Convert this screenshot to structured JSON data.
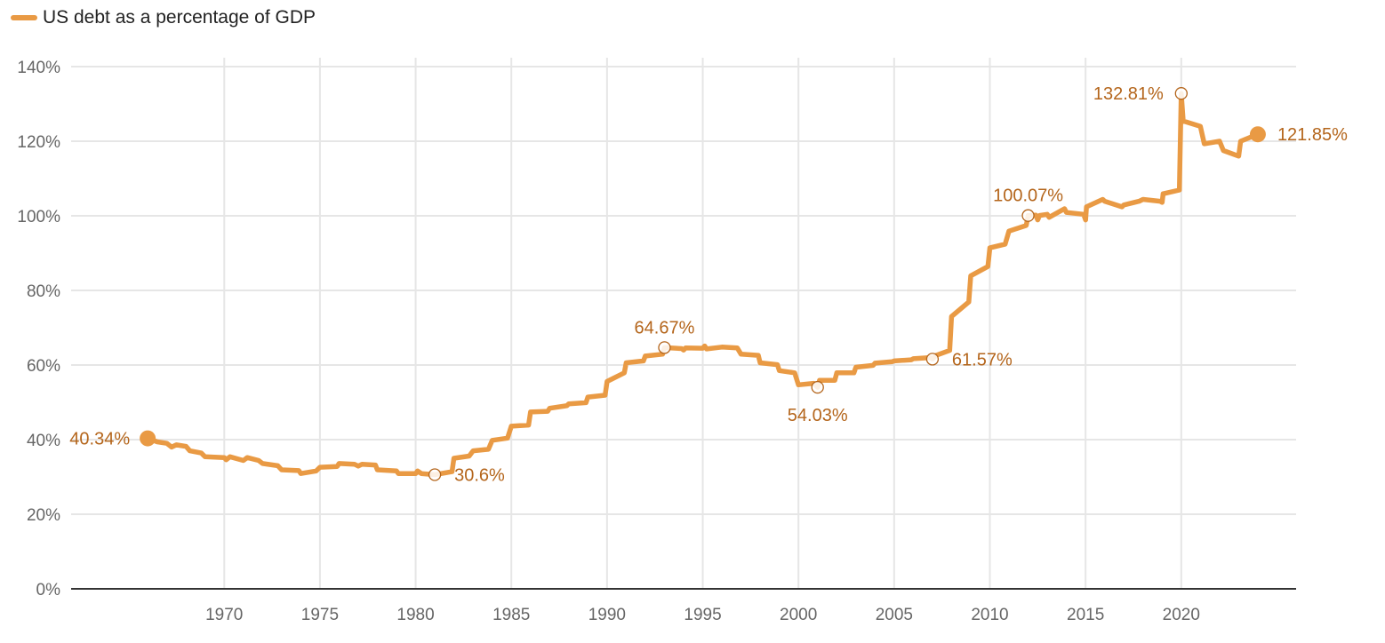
{
  "chart_data": {
    "type": "line",
    "series": [
      {
        "name": "US debt as a percentage of GDP",
        "color": "#E99A44",
        "points": [
          [
            1966.0,
            40.34
          ],
          [
            1966.5,
            39.4
          ],
          [
            1967.0,
            39.0
          ],
          [
            1967.25,
            38.0
          ],
          [
            1967.5,
            38.6
          ],
          [
            1968.0,
            38.2
          ],
          [
            1968.2,
            37.0
          ],
          [
            1968.8,
            36.4
          ],
          [
            1969.0,
            35.4
          ],
          [
            1970.0,
            35.2
          ],
          [
            1970.1,
            34.6
          ],
          [
            1970.3,
            35.4
          ],
          [
            1971.0,
            34.4
          ],
          [
            1971.2,
            35.2
          ],
          [
            1971.8,
            34.4
          ],
          [
            1972.0,
            33.6
          ],
          [
            1972.8,
            33.0
          ],
          [
            1973.0,
            31.9
          ],
          [
            1973.9,
            31.7
          ],
          [
            1974.0,
            30.9
          ],
          [
            1974.8,
            31.6
          ],
          [
            1975.0,
            32.6
          ],
          [
            1975.9,
            32.8
          ],
          [
            1976.0,
            33.6
          ],
          [
            1976.8,
            33.4
          ],
          [
            1977.0,
            32.9
          ],
          [
            1977.2,
            33.4
          ],
          [
            1977.9,
            33.2
          ],
          [
            1978.0,
            31.9
          ],
          [
            1979.0,
            31.6
          ],
          [
            1979.1,
            30.9
          ],
          [
            1980.0,
            30.9
          ],
          [
            1980.1,
            31.6
          ],
          [
            1980.3,
            30.9
          ],
          [
            1981.0,
            30.6
          ],
          [
            1981.9,
            31.4
          ],
          [
            1982.0,
            35.0
          ],
          [
            1982.8,
            35.6
          ],
          [
            1983.0,
            37.0
          ],
          [
            1983.8,
            37.4
          ],
          [
            1984.0,
            39.8
          ],
          [
            1984.8,
            40.4
          ],
          [
            1985.0,
            43.6
          ],
          [
            1985.9,
            43.9
          ],
          [
            1986.0,
            47.4
          ],
          [
            1986.9,
            47.6
          ],
          [
            1987.0,
            48.4
          ],
          [
            1987.9,
            49.1
          ],
          [
            1988.0,
            49.6
          ],
          [
            1988.9,
            49.9
          ],
          [
            1989.0,
            51.4
          ],
          [
            1989.9,
            51.9
          ],
          [
            1990.0,
            55.6
          ],
          [
            1990.9,
            57.9
          ],
          [
            1991.0,
            60.6
          ],
          [
            1991.9,
            61.1
          ],
          [
            1992.0,
            62.4
          ],
          [
            1992.9,
            62.9
          ],
          [
            1993.0,
            64.67
          ],
          [
            1993.9,
            64.4
          ],
          [
            1994.0,
            64.0
          ],
          [
            1994.1,
            64.6
          ],
          [
            1995.0,
            64.5
          ],
          [
            1995.1,
            65.1
          ],
          [
            1995.2,
            64.3
          ],
          [
            1996.0,
            64.8
          ],
          [
            1996.8,
            64.6
          ],
          [
            1997.0,
            62.9
          ],
          [
            1997.9,
            62.6
          ],
          [
            1998.0,
            60.6
          ],
          [
            1998.9,
            60.1
          ],
          [
            1999.0,
            58.5
          ],
          [
            1999.8,
            57.9
          ],
          [
            2000.0,
            54.7
          ],
          [
            2000.8,
            55.1
          ],
          [
            2001.0,
            54.03
          ],
          [
            2001.1,
            55.9
          ],
          [
            2001.9,
            55.9
          ],
          [
            2002.0,
            57.9
          ],
          [
            2002.9,
            57.9
          ],
          [
            2003.0,
            59.4
          ],
          [
            2003.9,
            59.9
          ],
          [
            2004.0,
            60.5
          ],
          [
            2004.9,
            60.9
          ],
          [
            2005.0,
            61.1
          ],
          [
            2005.9,
            61.4
          ],
          [
            2006.0,
            61.7
          ],
          [
            2006.9,
            62.0
          ],
          [
            2007.0,
            61.57
          ],
          [
            2007.2,
            62.6
          ],
          [
            2007.9,
            63.9
          ],
          [
            2008.0,
            73.0
          ],
          [
            2008.9,
            76.9
          ],
          [
            2009.0,
            83.9
          ],
          [
            2009.9,
            86.4
          ],
          [
            2010.0,
            91.4
          ],
          [
            2010.8,
            92.4
          ],
          [
            2011.0,
            95.9
          ],
          [
            2011.9,
            97.4
          ],
          [
            2012.0,
            100.07
          ],
          [
            2012.4,
            100.2
          ],
          [
            2012.5,
            98.9
          ],
          [
            2012.6,
            100.1
          ],
          [
            2013.0,
            100.4
          ],
          [
            2013.1,
            99.6
          ],
          [
            2013.9,
            101.9
          ],
          [
            2014.0,
            100.9
          ],
          [
            2014.9,
            100.4
          ],
          [
            2015.0,
            98.9
          ],
          [
            2015.05,
            102.4
          ],
          [
            2015.9,
            104.4
          ],
          [
            2016.0,
            103.9
          ],
          [
            2016.9,
            102.4
          ],
          [
            2017.0,
            102.9
          ],
          [
            2017.8,
            103.9
          ],
          [
            2018.0,
            104.4
          ],
          [
            2018.9,
            103.9
          ],
          [
            2019.0,
            103.6
          ],
          [
            2019.05,
            105.9
          ],
          [
            2019.9,
            106.9
          ],
          [
            2020.0,
            132.81
          ],
          [
            2020.1,
            125.4
          ],
          [
            2021.0,
            124.0
          ],
          [
            2021.2,
            119.3
          ],
          [
            2022.0,
            120.0
          ],
          [
            2022.2,
            117.5
          ],
          [
            2023.0,
            116.0
          ],
          [
            2023.1,
            120.0
          ],
          [
            2024.0,
            121.85
          ]
        ]
      }
    ],
    "x_ticks": [
      "1970",
      "1975",
      "1980",
      "1985",
      "1990",
      "1995",
      "2000",
      "2005",
      "2010",
      "2015",
      "2020"
    ],
    "x_tick_values": [
      1970,
      1975,
      1980,
      1985,
      1990,
      1995,
      2000,
      2005,
      2010,
      2015,
      2020
    ],
    "y_ticks": [
      "0%",
      "20%",
      "40%",
      "60%",
      "80%",
      "100%",
      "120%",
      "140%"
    ],
    "y_tick_values": [
      0,
      20,
      40,
      60,
      80,
      100,
      120,
      140
    ],
    "xlim": [
      1962,
      2026
    ],
    "ylim": [
      0,
      140
    ],
    "grid": true,
    "legend_position": "top-left",
    "annotations": [
      {
        "x": 1966,
        "y": 40.34,
        "label": "40.34%",
        "marker": "filled",
        "side": "left"
      },
      {
        "x": 1981,
        "y": 30.6,
        "label": "30.6%",
        "marker": "ring",
        "side": "right"
      },
      {
        "x": 1993,
        "y": 64.67,
        "label": "64.67%",
        "marker": "ring",
        "side": "above"
      },
      {
        "x": 2001,
        "y": 54.03,
        "label": "54.03%",
        "marker": "ring",
        "side": "below"
      },
      {
        "x": 2007,
        "y": 61.57,
        "label": "61.57%",
        "marker": "ring",
        "side": "right"
      },
      {
        "x": 2012,
        "y": 100.07,
        "label": "100.07%",
        "marker": "ring",
        "side": "above"
      },
      {
        "x": 2020,
        "y": 132.81,
        "label": "132.81%",
        "marker": "ring",
        "side": "left"
      },
      {
        "x": 2024,
        "y": 121.85,
        "label": "121.85%",
        "marker": "filled",
        "side": "right"
      }
    ],
    "colors": {
      "line": "#E99A44",
      "annotation_text": "#B4651B",
      "grid": "#e6e6e6",
      "axis": "#333333",
      "tick_text": "#666666"
    }
  }
}
